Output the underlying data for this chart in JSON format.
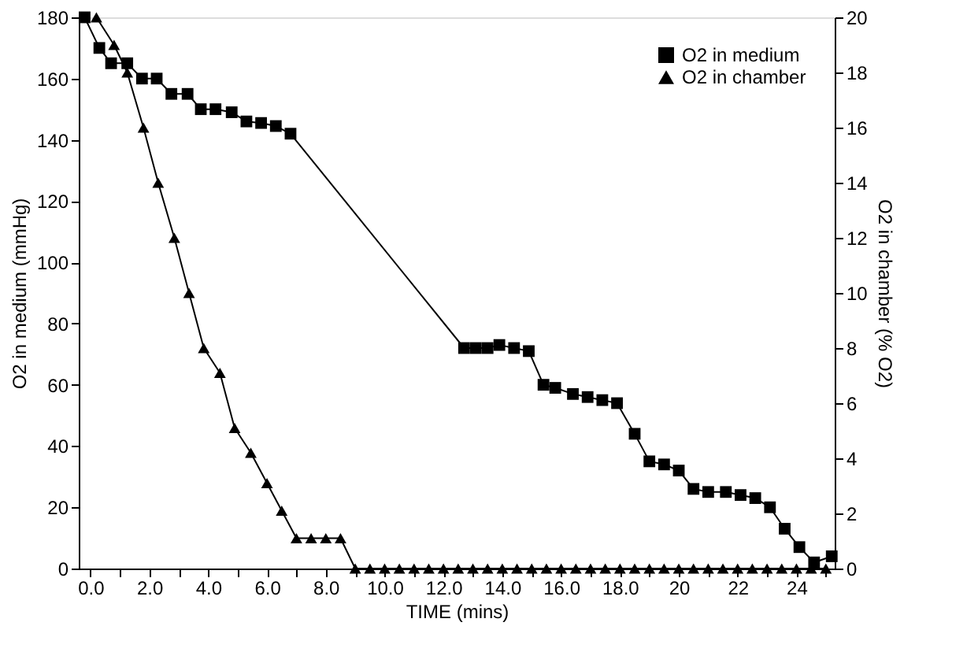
{
  "chart_data": {
    "type": "line",
    "xlabel": "TIME (mins)",
    "ylabel": "O2 in medium (mmHg)",
    "y2label": "O2 in chamber (% O2)",
    "xlim": [
      -0.4,
      25.3
    ],
    "ylim": [
      0,
      180
    ],
    "y2lim": [
      0,
      20
    ],
    "xticks": [
      {
        "value": 0,
        "label": "0.0"
      },
      {
        "value": 1,
        "label": null
      },
      {
        "value": 2,
        "label": "2.0"
      },
      {
        "value": 3,
        "label": null
      },
      {
        "value": 4,
        "label": "4.0"
      },
      {
        "value": 5,
        "label": null
      },
      {
        "value": 6,
        "label": "6.0"
      },
      {
        "value": 7,
        "label": null
      },
      {
        "value": 8,
        "label": "8.0"
      },
      {
        "value": 9,
        "label": null
      },
      {
        "value": 10,
        "label": "10.0"
      },
      {
        "value": 11,
        "label": null
      },
      {
        "value": 12,
        "label": "12.0"
      },
      {
        "value": 13,
        "label": null
      },
      {
        "value": 14,
        "label": "14.0"
      },
      {
        "value": 15,
        "label": null
      },
      {
        "value": 16,
        "label": "16.0"
      },
      {
        "value": 17,
        "label": null
      },
      {
        "value": 18,
        "label": "18.0"
      },
      {
        "value": 19,
        "label": null
      },
      20,
      {
        "value": 21,
        "label": null
      },
      22,
      {
        "value": 23,
        "label": null
      },
      24,
      {
        "value": 25,
        "label": null
      }
    ],
    "yticks": [
      0,
      20,
      40,
      60,
      80,
      100,
      120,
      140,
      160,
      180
    ],
    "y2ticks": [
      0,
      2,
      4,
      6,
      8,
      10,
      12,
      14,
      16,
      18,
      20
    ],
    "grid": false,
    "legend": "top right",
    "line_style": "solid",
    "series": [
      {
        "name": "O2 in medium",
        "color": "#000000",
        "marker": "square",
        "x": [
          -0.2,
          0.3,
          0.7,
          1.25,
          1.75,
          2.25,
          2.75,
          3.3,
          3.75,
          4.25,
          4.8,
          5.3,
          5.8,
          6.3,
          6.8,
          12.7,
          13.1,
          13.5,
          13.9,
          14.4,
          14.9,
          15.4,
          15.8,
          16.4,
          16.9,
          17.4,
          17.9,
          18.5,
          19.0,
          19.5,
          20.0,
          20.5,
          21.0,
          21.6,
          22.1,
          22.6,
          23.1,
          23.6,
          24.1,
          24.6,
          25.2
        ],
        "values": [
          180,
          170,
          165,
          165,
          160,
          160,
          155,
          155,
          150,
          150,
          149,
          146,
          145.5,
          144.5,
          142,
          72,
          72,
          72,
          73,
          72,
          71,
          60,
          59,
          57,
          56,
          55,
          54,
          44,
          35,
          34,
          32,
          26,
          25,
          25,
          24,
          23,
          20,
          13,
          7,
          2,
          4
        ]
      },
      {
        "name": "O2 in chamber",
        "color": "#000000",
        "marker": "triangle",
        "axis": "y2",
        "x": [
          0.2,
          0.8,
          1.25,
          1.8,
          2.3,
          2.85,
          3.35,
          3.85,
          4.4,
          4.9,
          5.45,
          6.0,
          6.5,
          7.0,
          7.5,
          8.0,
          8.5,
          9.0,
          9.5,
          10.0,
          10.5,
          11.0,
          11.5,
          12.0,
          12.5,
          13.0,
          13.5,
          14.0,
          14.5,
          15.0,
          15.5,
          16.0,
          16.5,
          17.0,
          17.5,
          18.0,
          18.5,
          19.0,
          19.5,
          20.0,
          20.5,
          21.0,
          21.5,
          22.0,
          22.5,
          23.0,
          23.5,
          24.0,
          24.5,
          25.0
        ],
        "values": [
          20,
          19,
          18,
          16,
          14,
          12,
          10,
          8,
          7.1,
          5.1,
          4.2,
          3.1,
          2.1,
          1.1,
          1.1,
          1.1,
          1.1,
          0,
          0,
          0,
          0,
          0,
          0,
          0,
          0,
          0,
          0,
          0,
          0,
          0,
          0,
          0,
          0,
          0,
          0,
          0,
          0,
          0,
          0,
          0,
          0,
          0,
          0,
          0,
          0,
          0,
          0,
          0,
          0,
          0
        ]
      }
    ]
  }
}
